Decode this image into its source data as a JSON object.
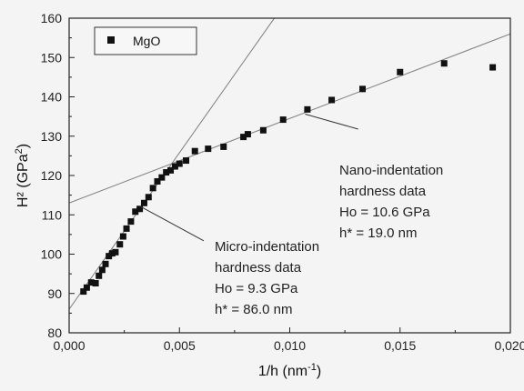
{
  "chart_data": {
    "type": "scatter",
    "xlabel_main": "1/h (nm",
    "xlabel_sup": "-1",
    "xlabel_end": ")",
    "ylabel_main": "H² (GPa",
    "ylabel_sup": "2",
    "ylabel_end": ")",
    "xlim": [
      0.0,
      0.02
    ],
    "ylim": [
      80,
      160
    ],
    "xticks": [
      0.0,
      0.005,
      0.01,
      0.015,
      0.02
    ],
    "xtick_labels": [
      "0,000",
      "0,005",
      "0,010",
      "0,015",
      "0,020"
    ],
    "yticks": [
      80,
      90,
      100,
      110,
      120,
      130,
      140,
      150,
      160
    ],
    "ytick_labels": [
      "80",
      "90",
      "100",
      "110",
      "120",
      "130",
      "140",
      "150",
      "160"
    ],
    "legend": {
      "label": "MgO",
      "position": "top-left"
    },
    "series": [
      {
        "name": "MgO",
        "marker": "square",
        "color": "#111111",
        "x": [
          0.00065,
          0.0008,
          0.001,
          0.0012,
          0.00135,
          0.0015,
          0.00165,
          0.0018,
          0.00195,
          0.0021,
          0.0023,
          0.00245,
          0.0026,
          0.0028,
          0.003,
          0.0032,
          0.0034,
          0.0036,
          0.0038,
          0.004,
          0.0042,
          0.0044,
          0.0046,
          0.0048,
          0.005,
          0.0053,
          0.0057,
          0.0063,
          0.007,
          0.0079,
          0.0081,
          0.0088,
          0.0097,
          0.0108,
          0.0119,
          0.0133,
          0.015,
          0.017,
          0.0192
        ],
        "y": [
          90.5,
          91.5,
          92.8,
          92.6,
          94.5,
          96.0,
          97.5,
          99.5,
          100.2,
          100.5,
          102.5,
          104.5,
          106.5,
          108.3,
          110.8,
          111.5,
          113.0,
          114.5,
          116.8,
          118.5,
          119.5,
          120.8,
          121.3,
          122.3,
          123.0,
          123.8,
          126.2,
          126.8,
          127.3,
          129.8,
          130.5,
          131.5,
          134.2,
          136.8,
          139.2,
          142.0,
          146.3,
          148.5,
          147.5
        ]
      }
    ],
    "fit_lines": [
      {
        "name": "micro",
        "x": [
          0.0,
          0.0093
        ],
        "y": [
          86.0,
          160.0
        ],
        "color": "#888888"
      },
      {
        "name": "nano",
        "x": [
          0.0,
          0.02
        ],
        "y": [
          113.0,
          156.0
        ],
        "color": "#888888"
      }
    ],
    "annotations": [
      {
        "id": "nano",
        "lines": [
          "Nano-indentation",
          "hardness data",
          "Ho = 10.6 GPa",
          "h* = 19.0 nm"
        ],
        "pointer_from": [
          0.0131,
          131.8
        ],
        "pointer_to": [
          0.0107,
          135.6
        ]
      },
      {
        "id": "micro",
        "lines": [
          "Micro-indentation",
          "hardness data",
          "Ho = 9.3 GPa",
          "h* = 86.0 nm"
        ],
        "pointer_from": [
          0.0061,
          103.4
        ],
        "pointer_to": [
          0.0032,
          112.2
        ]
      }
    ]
  }
}
